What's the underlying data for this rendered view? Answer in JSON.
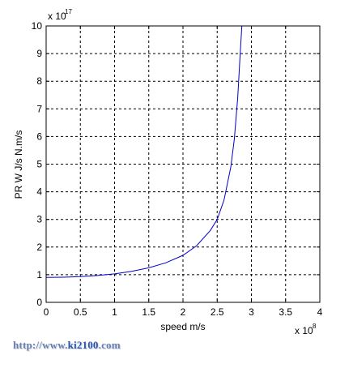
{
  "chart_data": {
    "type": "line",
    "title": "",
    "xlabel": "speed m/s",
    "ylabel": "PR  W  J/s  N.m/s",
    "xlim": [
      0,
      4
    ],
    "ylim": [
      0,
      10
    ],
    "x_scale_label": "x 10",
    "x_scale_exp": "8",
    "y_scale_label": "x 10",
    "y_scale_exp": "17",
    "x_ticks": [
      0,
      0.5,
      1,
      1.5,
      2,
      2.5,
      3,
      3.5,
      4
    ],
    "x_tick_labels": [
      "0",
      "0.5",
      "1",
      "1.5",
      "2",
      "2.5",
      "3",
      "3.5",
      "4"
    ],
    "y_ticks": [
      0,
      1,
      2,
      3,
      4,
      5,
      6,
      7,
      8,
      9,
      10
    ],
    "y_tick_labels": [
      "0",
      "1",
      "2",
      "3",
      "4",
      "5",
      "6",
      "7",
      "8",
      "9",
      "10"
    ],
    "grid": true,
    "series": [
      {
        "color": "#0000cc",
        "x": [
          0,
          0.25,
          0.5,
          0.75,
          1.0,
          1.25,
          1.5,
          1.75,
          2.0,
          2.2,
          2.4,
          2.5,
          2.6,
          2.7,
          2.75,
          2.8,
          2.83,
          2.86
        ],
        "y": [
          0.9,
          0.91,
          0.93,
          0.97,
          1.03,
          1.12,
          1.25,
          1.43,
          1.7,
          2.05,
          2.6,
          3.0,
          3.7,
          4.9,
          5.9,
          7.4,
          8.7,
          10.0
        ]
      }
    ]
  },
  "watermark": {
    "prefix": "http://www.",
    "highlight": "ki2100",
    "suffix": ".com"
  }
}
